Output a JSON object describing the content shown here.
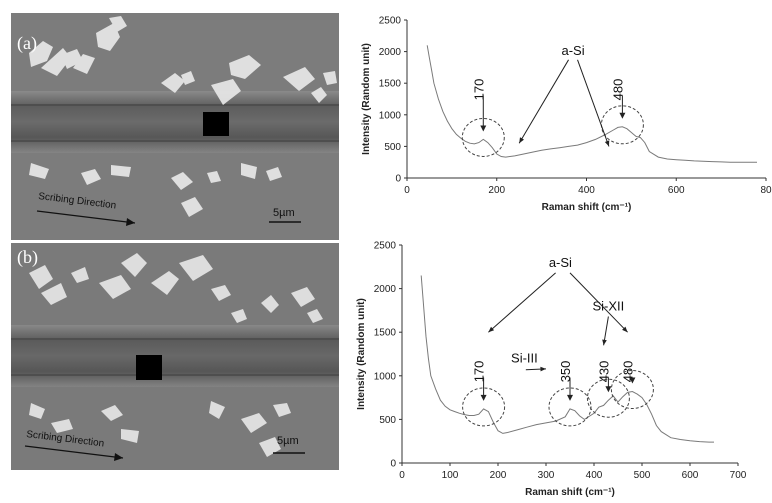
{
  "panel_a": {
    "label": "(a)",
    "direction_label": "Scribing Direction",
    "scale_label": "5µm"
  },
  "panel_b": {
    "label": "(b)",
    "direction_label": "Scribing Direction",
    "scale_label": "5µm"
  },
  "colors": {
    "sem_background": "#7b7b7b",
    "groove": "#5c5c5c",
    "spectrum": "#7a7a7a"
  },
  "chart_data": [
    {
      "type": "line",
      "xlabel": "Raman shift (cm⁻¹)",
      "ylabel": "Intensity (Random unit)",
      "xlim": [
        0,
        800
      ],
      "ylim": [
        0,
        2500
      ],
      "xticks": [
        "0",
        "200",
        "400",
        "600",
        "80"
      ],
      "yticks": [
        "0",
        "500",
        "1000",
        "1500",
        "2000",
        "2500"
      ],
      "grid": false,
      "x": [
        45,
        50,
        55,
        60,
        70,
        80,
        90,
        100,
        110,
        120,
        130,
        140,
        150,
        160,
        170,
        180,
        190,
        200,
        210,
        220,
        240,
        260,
        280,
        300,
        320,
        340,
        360,
        380,
        400,
        420,
        440,
        460,
        470,
        480,
        490,
        500,
        510,
        520,
        530,
        540,
        560,
        580,
        600,
        620,
        640,
        660,
        680,
        700,
        720,
        740,
        760,
        780
      ],
      "values": [
        2100,
        1900,
        1700,
        1500,
        1250,
        1050,
        900,
        780,
        690,
        630,
        580,
        550,
        540,
        560,
        610,
        560,
        480,
        380,
        340,
        330,
        350,
        380,
        410,
        440,
        460,
        480,
        500,
        520,
        560,
        610,
        680,
        760,
        800,
        810,
        780,
        720,
        660,
        640,
        560,
        420,
        330,
        300,
        290,
        280,
        270,
        265,
        260,
        255,
        250,
        250,
        248,
        250
      ],
      "annotations": [
        {
          "text": "a-Si",
          "x": 370,
          "y": 1950
        },
        {
          "text": "170",
          "x": 170,
          "y": 1400
        },
        {
          "text": "480",
          "x": 480,
          "y": 1400
        }
      ]
    },
    {
      "type": "line",
      "xlabel": "Raman shift (cm⁻¹)",
      "ylabel": "Intensity (Random unit)",
      "xlim": [
        0,
        700
      ],
      "ylim": [
        0,
        2500
      ],
      "xticks": [
        "0",
        "100",
        "200",
        "300",
        "400",
        "500",
        "600",
        "700"
      ],
      "yticks": [
        "0",
        "500",
        "1000",
        "1500",
        "2000",
        "2500"
      ],
      "grid": false,
      "x": [
        40,
        45,
        50,
        55,
        60,
        70,
        80,
        90,
        100,
        110,
        120,
        130,
        140,
        150,
        160,
        170,
        180,
        190,
        200,
        210,
        220,
        240,
        260,
        280,
        300,
        320,
        340,
        350,
        360,
        370,
        380,
        400,
        410,
        420,
        430,
        440,
        450,
        460,
        470,
        480,
        490,
        500,
        510,
        520,
        530,
        540,
        560,
        580,
        600,
        620,
        640,
        650
      ],
      "values": [
        2150,
        1800,
        1450,
        1200,
        1000,
        850,
        720,
        650,
        610,
        590,
        570,
        555,
        545,
        545,
        560,
        620,
        590,
        470,
        370,
        340,
        350,
        380,
        410,
        440,
        460,
        480,
        530,
        620,
        600,
        540,
        500,
        570,
        640,
        660,
        720,
        770,
        700,
        760,
        810,
        820,
        790,
        750,
        670,
        560,
        430,
        360,
        290,
        270,
        255,
        245,
        240,
        240
      ],
      "annotations": [
        {
          "text": "a-Si",
          "x": 330,
          "y": 2250
        },
        {
          "text": "Si-XII",
          "x": 430,
          "y": 1750
        },
        {
          "text": "Si-III",
          "x": 255,
          "y": 1150
        },
        {
          "text": "170",
          "x": 170,
          "y": 1050
        },
        {
          "text": "350",
          "x": 350,
          "y": 1050
        },
        {
          "text": "430",
          "x": 430,
          "y": 1050
        },
        {
          "text": "480",
          "x": 480,
          "y": 1050
        }
      ]
    }
  ]
}
